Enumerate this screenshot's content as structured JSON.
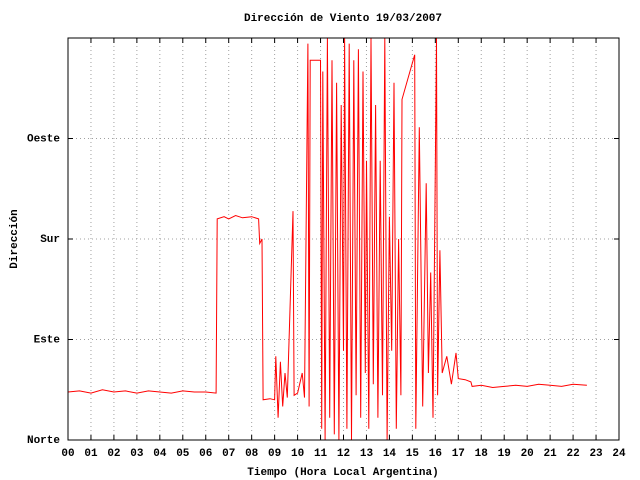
{
  "chart_data": {
    "type": "line",
    "title": "Dirección de Viento 19/03/2007",
    "xlabel": "Tiempo (Hora Local Argentina)",
    "ylabel": "Dirección",
    "xlim": [
      0,
      24
    ],
    "ylim": [
      0,
      360
    ],
    "grid": true,
    "xticks": [
      {
        "value": 0,
        "label": "00"
      },
      {
        "value": 1,
        "label": "01"
      },
      {
        "value": 2,
        "label": "02"
      },
      {
        "value": 3,
        "label": "03"
      },
      {
        "value": 4,
        "label": "04"
      },
      {
        "value": 5,
        "label": "05"
      },
      {
        "value": 6,
        "label": "06"
      },
      {
        "value": 7,
        "label": "07"
      },
      {
        "value": 8,
        "label": "08"
      },
      {
        "value": 9,
        "label": "09"
      },
      10,
      11,
      12,
      13,
      14,
      15,
      16,
      17,
      18,
      19,
      20,
      21,
      22,
      23,
      24
    ],
    "yticks": [
      {
        "value": 0,
        "label": "Norte"
      },
      {
        "value": 90,
        "label": "Este"
      },
      {
        "value": 180,
        "label": "Sur"
      },
      {
        "value": 270,
        "label": "Oeste"
      }
    ],
    "x": [
      0,
      0.5,
      1,
      1.5,
      2,
      2.5,
      3,
      3.5,
      4,
      4.5,
      5,
      5.5,
      6,
      6.45,
      6.5,
      6.8,
      7,
      7.3,
      7.6,
      8,
      8.3,
      8.35,
      8.45,
      8.5,
      8.8,
      9,
      9.05,
      9.15,
      9.25,
      9.35,
      9.45,
      9.55,
      9.8,
      9.85,
      10,
      10.2,
      10.3,
      10.45,
      10.5,
      10.55,
      11,
      11.05,
      11.1,
      11.2,
      11.3,
      11.4,
      11.5,
      11.6,
      11.7,
      11.8,
      11.9,
      12,
      12.05,
      12.15,
      12.25,
      12.35,
      12.45,
      12.55,
      12.65,
      12.75,
      12.85,
      12.95,
      13,
      13.1,
      13.2,
      13.3,
      13.4,
      13.5,
      13.6,
      13.7,
      13.8,
      13.9,
      14,
      14.1,
      14.2,
      14.3,
      14.4,
      14.5,
      14.55,
      15.1,
      15.15,
      15.3,
      15.45,
      15.6,
      15.7,
      15.8,
      15.9,
      16.05,
      16.1,
      16.2,
      16.3,
      16.5,
      16.7,
      16.9,
      17,
      17.3,
      17.55,
      17.6,
      18,
      18.5,
      19,
      19.5,
      20,
      20.5,
      21,
      21.5,
      22,
      22.6
    ],
    "series": [
      {
        "color": "#ff0000",
        "values": [
          43,
          44,
          42,
          45,
          43,
          44,
          42,
          44,
          43,
          42,
          44,
          43,
          43,
          42,
          198,
          200,
          198,
          201,
          199,
          200,
          198,
          176,
          180,
          36,
          37,
          36,
          75,
          20,
          70,
          30,
          60,
          38,
          205,
          40,
          42,
          60,
          38,
          355,
          30,
          340,
          340,
          10,
          330,
          0,
          360,
          20,
          340,
          5,
          320,
          0,
          300,
          80,
          360,
          10,
          355,
          0,
          340,
          40,
          350,
          20,
          330,
          60,
          250,
          10,
          360,
          50,
          300,
          20,
          250,
          40,
          360,
          0,
          200,
          80,
          320,
          10,
          180,
          40,
          305,
          345,
          10,
          280,
          30,
          230,
          60,
          150,
          20,
          360,
          40,
          170,
          60,
          75,
          50,
          78,
          55,
          54,
          52,
          48,
          49,
          47,
          48,
          49,
          48,
          50,
          49,
          48,
          50,
          49
        ]
      }
    ]
  }
}
